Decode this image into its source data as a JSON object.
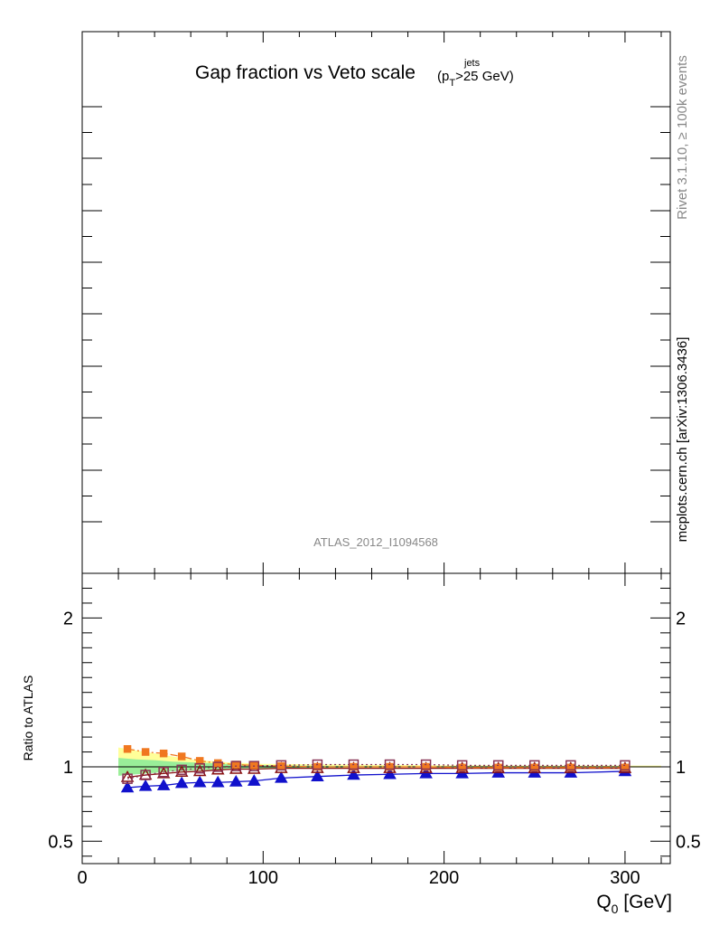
{
  "chart_data": [
    {
      "panel": "main",
      "type": "line",
      "title": "Gap fraction vs Veto scale",
      "title_subscript_label": {
        "base": "(p",
        "sup": "jets",
        "sub": "T",
        "tail": ">25 GeV)"
      },
      "watermark": "ATLAS_2012_I1094568",
      "y_axis_labels_visible": false,
      "series": []
    },
    {
      "panel": "ratio",
      "type": "line",
      "ylabel": "Ratio to ATLAS",
      "xlabel_base": "Q",
      "xlabel_sub": "0",
      "xlabel_unit": "[GeV]",
      "xlim": [
        0,
        325
      ],
      "ylim": [
        0.35,
        2.3
      ],
      "x_ticks": [
        0,
        100,
        200,
        300
      ],
      "x_tick_labels": [
        "0",
        "100",
        "200",
        "300"
      ],
      "y_ticks": [
        0.5,
        1,
        2
      ],
      "y_tick_labels": [
        "0.5",
        "1",
        "2"
      ],
      "reference_line": 1,
      "band": {
        "x": [
          20,
          30,
          40,
          50,
          60,
          70,
          80,
          90,
          100,
          120,
          140,
          160,
          180,
          200,
          220,
          240,
          260,
          280,
          320
        ],
        "yellow_lo": [
          0.95,
          0.96,
          0.97,
          0.975,
          0.98,
          0.985,
          0.99,
          0.99,
          0.99,
          0.992,
          0.993,
          0.994,
          0.995,
          0.995,
          0.995,
          0.996,
          0.996,
          0.996,
          0.996
        ],
        "yellow_hi": [
          1.13,
          1.11,
          1.09,
          1.07,
          1.05,
          1.04,
          1.03,
          1.025,
          1.02,
          1.018,
          1.016,
          1.014,
          1.012,
          1.01,
          1.01,
          1.008,
          1.008,
          1.008,
          1.008
        ],
        "green_lo": [
          0.94,
          0.95,
          0.96,
          0.97,
          0.975,
          0.98,
          0.985,
          0.99,
          0.99,
          0.993,
          0.995,
          0.996,
          0.997,
          0.997,
          0.997,
          0.998,
          0.998,
          0.998,
          0.998
        ],
        "green_hi": [
          1.06,
          1.05,
          1.045,
          1.035,
          1.03,
          1.025,
          1.02,
          1.015,
          1.012,
          1.008,
          1.006,
          1.005,
          1.004,
          1.004,
          1.004,
          1.003,
          1.003,
          1.003,
          1.003
        ]
      },
      "series": [
        {
          "color": "#1111cc",
          "marker": "triangle-filled",
          "line": "solid",
          "x": [
            25,
            35,
            45,
            55,
            65,
            75,
            85,
            95,
            110,
            130,
            150,
            170,
            190,
            210,
            230,
            250,
            270,
            300
          ],
          "y": [
            0.86,
            0.87,
            0.875,
            0.89,
            0.895,
            0.895,
            0.9,
            0.905,
            0.925,
            0.935,
            0.945,
            0.95,
            0.955,
            0.955,
            0.96,
            0.96,
            0.96,
            0.97
          ]
        },
        {
          "color": "#881111",
          "marker": "triangle-open",
          "line": "solid",
          "x": [
            25,
            35,
            45,
            55,
            65,
            75,
            85,
            95,
            110,
            130,
            150,
            170,
            190,
            210,
            230,
            250,
            270,
            300
          ],
          "y": [
            0.93,
            0.945,
            0.955,
            0.965,
            0.97,
            0.98,
            0.985,
            0.985,
            0.99,
            0.99,
            0.99,
            0.99,
            0.99,
            0.99,
            0.99,
            0.99,
            0.99,
            0.99
          ]
        },
        {
          "color": "#f07820",
          "marker": "square-filled",
          "line": "dashdot",
          "x": [
            25,
            35,
            45,
            55,
            65,
            75,
            85,
            95,
            110,
            130,
            150,
            170,
            190,
            210,
            230,
            250,
            270,
            300
          ],
          "y": [
            1.12,
            1.1,
            1.09,
            1.07,
            1.04,
            1.025,
            1.015,
            1.01,
            1.005,
            1.0,
            1.0,
            1.0,
            1.0,
            0.995,
            0.995,
            0.995,
            0.995,
            0.995
          ]
        },
        {
          "color": "#883355",
          "marker": "square-open",
          "line": "dotted",
          "x": [
            25,
            35,
            45,
            55,
            65,
            75,
            85,
            95,
            110,
            130,
            150,
            170,
            190,
            210,
            230,
            250,
            270,
            300
          ],
          "y": [
            0.92,
            0.945,
            0.965,
            0.98,
            0.99,
            1.0,
            1.005,
            1.005,
            1.01,
            1.015,
            1.015,
            1.015,
            1.015,
            1.01,
            1.01,
            1.01,
            1.01,
            1.01
          ]
        }
      ]
    }
  ],
  "side_labels": {
    "rivet": "Rivet 3.1.10, ≥ 100k events",
    "mcplots": "mcplots.cern.ch [arXiv:1306.3436]"
  },
  "colors": {
    "reference_line": "#000000",
    "band_yellow": "#ffff99",
    "band_green": "#99ee99",
    "watermark": "#888888",
    "side_label_gray": "#888888"
  }
}
